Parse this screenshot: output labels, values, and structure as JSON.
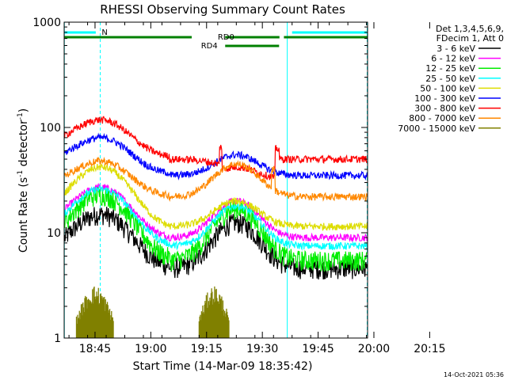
{
  "chart_data": {
    "type": "line",
    "title": "RHESSI Observing Summary Count Rates",
    "xlabel": "Start Time (14-Mar-09 18:35:42)",
    "ylabel_main": "Count Rate (s",
    "ylabel_sup1": "-1",
    "ylabel_mid": " detector",
    "ylabel_sup2": "-1",
    "ylabel_end": ")",
    "yscale": "log",
    "ylim": [
      1,
      1000
    ],
    "xlim_minutes": [
      18.7,
      100.3
    ],
    "x_tick_labels": [
      {
        "label": "18:45",
        "t": 27
      },
      {
        "label": "19:00",
        "t": 42
      },
      {
        "label": "19:15",
        "t": 57
      },
      {
        "label": "19:30",
        "t": 72
      },
      {
        "label": "19:45",
        "t": 87
      },
      {
        "label": "20:00",
        "t": 102
      },
      {
        "label": "20:15",
        "t": 117
      }
    ],
    "y_tick_labels": [
      {
        "label": "1000",
        "v": 1000
      },
      {
        "label": "100",
        "v": 100
      },
      {
        "label": "10",
        "v": 10
      },
      {
        "label": "1",
        "v": 1
      }
    ],
    "legend_header": [
      "Det 1,3,4,5,6,9,",
      "FDecim 1, Att 0"
    ],
    "series": [
      {
        "name": "3 - 6 keV",
        "color": "#000000",
        "base1": 4.6,
        "peak1": 15,
        "base2": 4.6,
        "peak2": 12.5
      },
      {
        "name": "6 - 12 keV",
        "color": "#ff00ff",
        "base1": 8.8,
        "peak1": 27,
        "base2": 9.0,
        "peak2": 20
      },
      {
        "name": "12 - 25 keV",
        "color": "#00ee00",
        "base1": 5.5,
        "peak1": 23,
        "base2": 5.5,
        "peak2": 17
      },
      {
        "name": "25 - 50 keV",
        "color": "#00ffff",
        "base1": 7.5,
        "peak1": 26,
        "base2": 7.5,
        "peak2": 18
      },
      {
        "name": "50 - 100 keV",
        "color": "#dddd00",
        "base1": 11,
        "peak1": 42,
        "base2": 11.5,
        "peak2": 20
      },
      {
        "name": "100 - 300 keV",
        "color": "#0000ff",
        "base1": 36,
        "peak1": 80,
        "base2": 35,
        "peak2": 55
      },
      {
        "name": "300 - 800 keV",
        "color": "#ff0000",
        "base1": 52,
        "peak1": 118,
        "base2": 50,
        "peak2": 42
      },
      {
        "name": "800 - 7000 keV",
        "color": "#ff8800",
        "base1": 22,
        "peak1": 48,
        "base2": 22,
        "peak2": 45
      },
      {
        "name": "7000 - 15000 keV",
        "color": "#808000",
        "base1": 1,
        "peak1": 2.8,
        "base2": 1,
        "peak2": 2.6
      }
    ],
    "flags": [
      {
        "label": "N",
        "color": "#00ffff"
      },
      {
        "label": "RD0",
        "color": "#008000"
      },
      {
        "label": "RD4",
        "color": "#008000"
      }
    ],
    "footer_date": "14-Oct-2021 05:36"
  }
}
